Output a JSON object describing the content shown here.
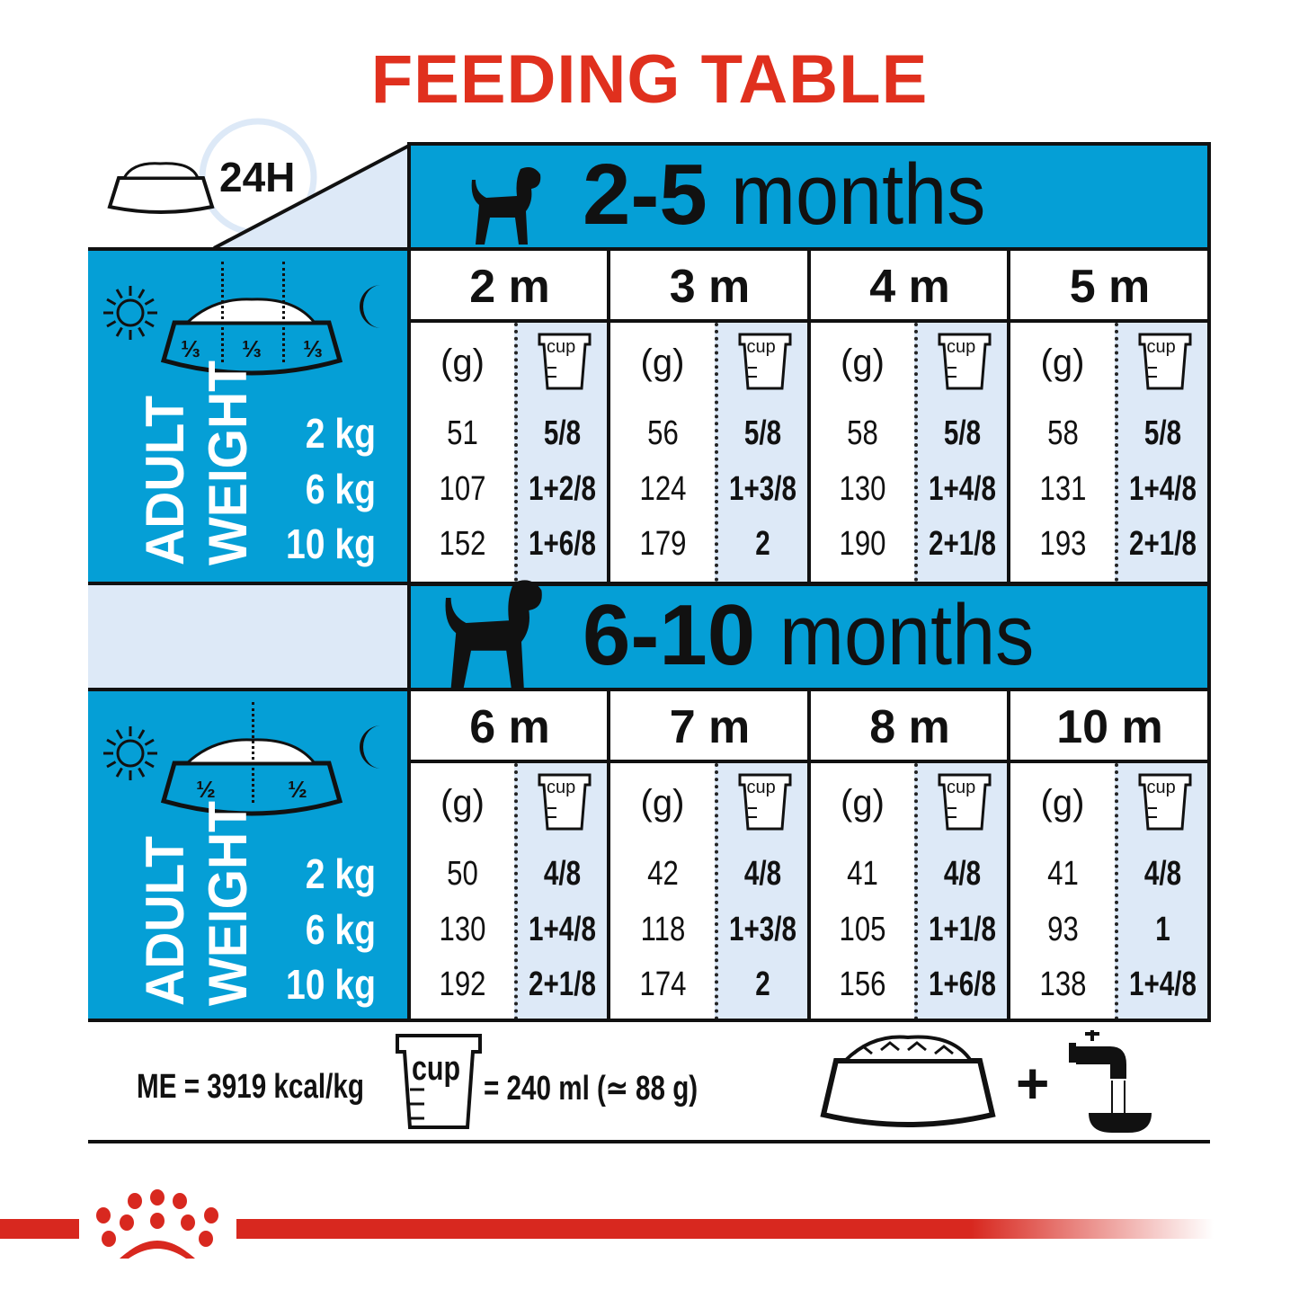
{
  "title": "FEEDING TABLE",
  "colors": {
    "title_red": "#e0301e",
    "table_blue": "#059fd6",
    "cell_light_blue": "#dde9f7",
    "brand_red": "#d8281f"
  },
  "corner": {
    "period": "24H",
    "cup_label": "cup",
    "icons": [
      "bowl-icon",
      "clock-icon",
      "cup-icon"
    ]
  },
  "sections": [
    {
      "age_range": "2-5",
      "age_unit": "months",
      "split": [
        "⅓",
        "⅓",
        "⅓"
      ],
      "weight_label": [
        "ADULT",
        "WEIGHT"
      ],
      "weights": [
        "2 kg",
        "6 kg",
        "10 kg"
      ],
      "months": [
        {
          "label": "2 m",
          "g_label": "(g)",
          "cup_label": "cup",
          "grams": [
            "51",
            "107",
            "152"
          ],
          "cups": [
            "5/8",
            "1+2/8",
            "1+6/8"
          ]
        },
        {
          "label": "3 m",
          "g_label": "(g)",
          "cup_label": "cup",
          "grams": [
            "56",
            "124",
            "179"
          ],
          "cups": [
            "5/8",
            "1+3/8",
            "2"
          ]
        },
        {
          "label": "4 m",
          "g_label": "(g)",
          "cup_label": "cup",
          "grams": [
            "58",
            "130",
            "190"
          ],
          "cups": [
            "5/8",
            "1+4/8",
            "2+1/8"
          ]
        },
        {
          "label": "5 m",
          "g_label": "(g)",
          "cup_label": "cup",
          "grams": [
            "58",
            "131",
            "193"
          ],
          "cups": [
            "5/8",
            "1+4/8",
            "2+1/8"
          ]
        }
      ]
    },
    {
      "age_range": "6-10",
      "age_unit": "months",
      "split": [
        "½",
        "½"
      ],
      "weight_label": [
        "ADULT",
        "WEIGHT"
      ],
      "weights": [
        "2 kg",
        "6 kg",
        "10 kg"
      ],
      "months": [
        {
          "label": "6 m",
          "g_label": "(g)",
          "cup_label": "cup",
          "grams": [
            "50",
            "130",
            "192"
          ],
          "cups": [
            "4/8",
            "1+4/8",
            "2+1/8"
          ]
        },
        {
          "label": "7 m",
          "g_label": "(g)",
          "cup_label": "cup",
          "grams": [
            "42",
            "118",
            "174"
          ],
          "cups": [
            "4/8",
            "1+3/8",
            "2"
          ]
        },
        {
          "label": "8 m",
          "g_label": "(g)",
          "cup_label": "cup",
          "grams": [
            "41",
            "105",
            "156"
          ],
          "cups": [
            "4/8",
            "1+1/8",
            "1+6/8"
          ]
        },
        {
          "label": "10 m",
          "g_label": "(g)",
          "cup_label": "cup",
          "grams": [
            "41",
            "93",
            "138"
          ],
          "cups": [
            "4/8",
            "1",
            "1+4/8"
          ]
        }
      ]
    }
  ],
  "footer": {
    "energy": "ME = 3919 kcal/kg",
    "cup_label": "cup",
    "cup_equiv": "= 240 ml (≃ 88 g)",
    "plus": "+",
    "icons": [
      "bowl-icon",
      "water-tap-icon"
    ]
  }
}
